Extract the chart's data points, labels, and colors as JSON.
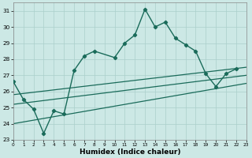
{
  "xlabel": "Humidex (Indice chaleur)",
  "xlim": [
    0,
    23
  ],
  "ylim": [
    23,
    31.5
  ],
  "xticks": [
    0,
    1,
    2,
    3,
    4,
    5,
    6,
    7,
    8,
    9,
    10,
    11,
    12,
    13,
    14,
    15,
    16,
    17,
    18,
    19,
    20,
    21,
    22,
    23
  ],
  "yticks": [
    23,
    24,
    25,
    26,
    27,
    28,
    29,
    30,
    31
  ],
  "bg_color": "#cce8e5",
  "line_color": "#1a6b5a",
  "grid_color": "#aacfcb",
  "main_x": [
    0,
    1,
    2,
    3,
    4,
    5,
    6,
    7,
    8,
    10,
    11,
    12,
    13,
    14,
    15,
    16,
    17,
    18,
    19,
    20,
    21,
    22
  ],
  "main_y": [
    26.6,
    25.5,
    24.9,
    23.4,
    24.8,
    24.6,
    27.3,
    28.2,
    28.5,
    28.1,
    29.0,
    29.5,
    31.1,
    30.0,
    30.3,
    29.3,
    28.9,
    28.5,
    27.1,
    26.3,
    27.1,
    27.4
  ],
  "line2_x": [
    0,
    23
  ],
  "line2_y": [
    25.8,
    27.5
  ],
  "line3_x": [
    0,
    23
  ],
  "line3_y": [
    25.2,
    27.0
  ],
  "line4_x": [
    0,
    23
  ],
  "line4_y": [
    24.0,
    26.5
  ]
}
